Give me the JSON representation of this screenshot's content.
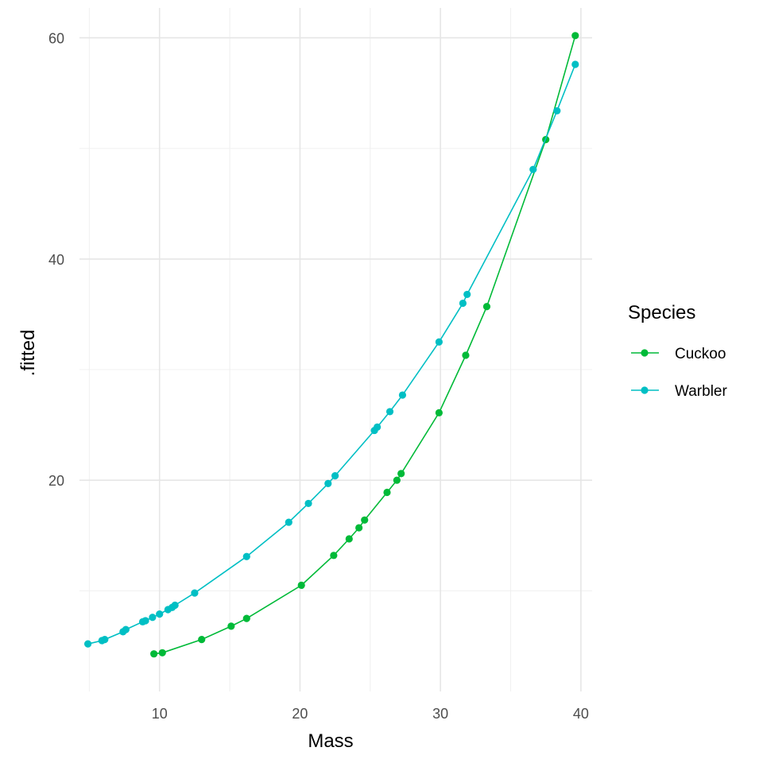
{
  "chart_data": {
    "type": "line",
    "title": "",
    "xlabel": "Mass",
    "ylabel": ".fitted",
    "xlim": [
      4.3,
      40.8
    ],
    "ylim": [
      0.9,
      62.7
    ],
    "x_ticks": [
      10,
      20,
      30,
      40
    ],
    "y_ticks": [
      20,
      40,
      60
    ],
    "x_tick_labels": [
      "10",
      "20",
      "30",
      "40"
    ],
    "y_tick_labels": [
      "20",
      "40",
      "60"
    ],
    "grid": true,
    "legend_title": "Species",
    "legend_position": "right",
    "series": [
      {
        "name": "Cuckoo",
        "color": "#00BA38",
        "x": [
          9.6,
          10.2,
          13.0,
          15.1,
          16.2,
          20.1,
          22.4,
          23.5,
          24.2,
          24.6,
          26.2,
          26.9,
          27.2,
          29.9,
          31.8,
          33.3,
          37.5,
          39.6
        ],
        "y": [
          4.3,
          4.4,
          5.6,
          6.8,
          7.5,
          10.5,
          13.2,
          14.7,
          15.7,
          16.4,
          18.9,
          20.0,
          20.6,
          26.1,
          31.3,
          35.7,
          50.8,
          60.2
        ]
      },
      {
        "name": "Warbler",
        "color": "#00BFC4",
        "x": [
          4.9,
          5.9,
          6.1,
          7.4,
          7.6,
          8.8,
          9.0,
          9.5,
          10.0,
          10.6,
          10.9,
          11.1,
          12.5,
          16.2,
          19.2,
          20.6,
          22.0,
          22.5,
          25.3,
          25.5,
          26.4,
          27.3,
          29.9,
          31.6,
          31.9,
          36.6,
          38.3,
          39.6
        ],
        "y": [
          5.2,
          5.5,
          5.6,
          6.3,
          6.5,
          7.2,
          7.3,
          7.6,
          7.9,
          8.3,
          8.5,
          8.7,
          9.8,
          13.1,
          16.2,
          17.9,
          19.7,
          20.4,
          24.5,
          24.8,
          26.2,
          27.7,
          32.5,
          36.0,
          36.8,
          48.1,
          53.4,
          57.6
        ]
      }
    ]
  }
}
